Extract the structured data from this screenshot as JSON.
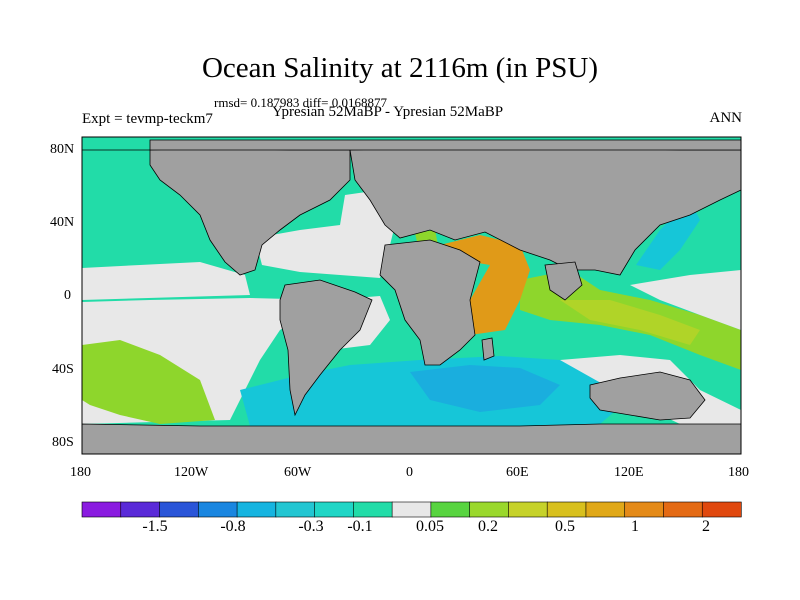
{
  "title": "Ocean Salinity at 2116m (in PSU)",
  "stats": "rmsd= 0.187983 diff= 0.0168877",
  "experiment": "Expt = tevmp-teckm7",
  "subtitle": "Ypresian  52MaBP - Ypresian  52MaBP",
  "season": "ANN",
  "axes": {
    "lat_labels": [
      "80N",
      "40N",
      "0",
      "40S",
      "80S"
    ],
    "lon_labels": [
      "180",
      "120W",
      "60W",
      "0",
      "60E",
      "120E",
      "180"
    ]
  },
  "colorbar": {
    "labels": [
      "-1.5",
      "-0.8",
      "-0.3",
      "-0.1",
      "0.05",
      "0.2",
      "0.5",
      "1",
      "2"
    ],
    "colors": [
      "#8a1be0",
      "#5a2ad8",
      "#2a55d8",
      "#1a86e0",
      "#16b4e0",
      "#23c6d2",
      "#20d6c6",
      "#22dca8",
      "#e8e8e8",
      "#58d440",
      "#9ad82c",
      "#c6d22a",
      "#d8c01e",
      "#e0a818",
      "#e48a18",
      "#e46a14",
      "#e0480e"
    ]
  },
  "colors": {
    "land": "#a0a0a0",
    "neutral": "#e8e8e8",
    "teal": "#22dca8",
    "cyan": "#16c6d8",
    "blue": "#1aaede",
    "green": "#8ed62c",
    "yellow_green": "#b0d428",
    "orange": "#e09a18"
  }
}
